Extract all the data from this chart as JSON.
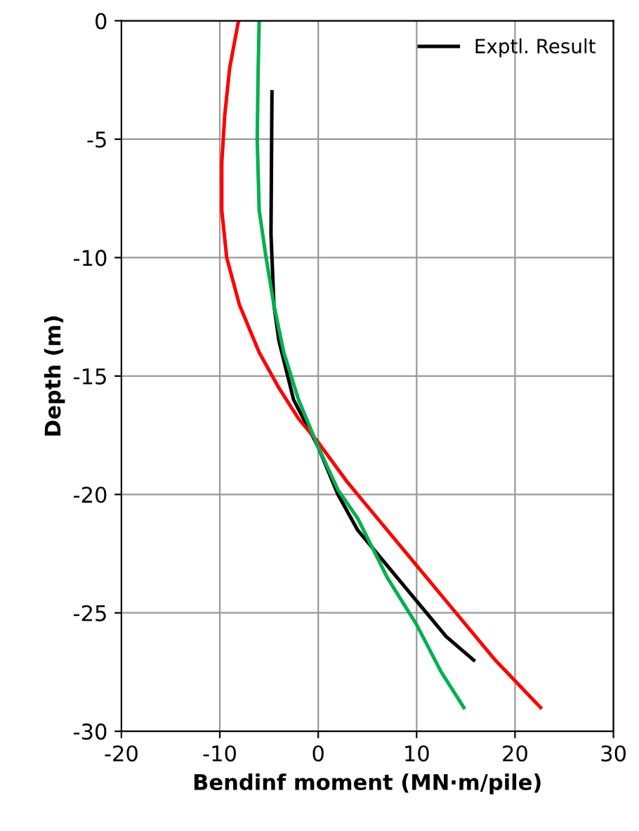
{
  "chart_data": {
    "type": "line",
    "xlabel": "Bendinf moment (MN·m/pile)",
    "ylabel": "Depth (m)",
    "xlim": [
      -20,
      30
    ],
    "xticks": [
      -20,
      -10,
      0,
      10,
      20,
      30
    ],
    "ylim": [
      -30,
      0
    ],
    "yticks": [
      -30,
      -25,
      -20,
      -15,
      -10,
      -5,
      0
    ],
    "grid": true,
    "legend": "top right",
    "marker": "none",
    "line_style": "solid",
    "series": [
      {
        "name": "Exptl. Result",
        "color": "#000000",
        "x": [
          -4.7,
          -4.8,
          -4.5,
          -4,
          -2.5,
          0,
          2,
          4,
          7,
          10,
          13,
          15.8
        ],
        "values": [
          -3,
          -9,
          -12,
          -13.5,
          -16,
          -18,
          -20,
          -21.5,
          -23,
          -24.5,
          -26,
          -27
        ]
      },
      {
        "color": "#ff0000",
        "x": [
          -8.1,
          -9,
          -9.5,
          -9.8,
          -9.8,
          -9.3,
          -8,
          -6,
          -4,
          -2,
          0,
          3,
          6,
          10,
          14,
          18,
          22.6
        ],
        "values": [
          0,
          -2,
          -4,
          -6,
          -8,
          -10,
          -12,
          -14,
          -15.5,
          -16.8,
          -17.8,
          -19.5,
          -21,
          -23,
          -25,
          -27,
          -29
        ]
      },
      {
        "color": "#00b050",
        "x": [
          -6,
          -6.1,
          -6.2,
          -6,
          -5.3,
          -4.5,
          -3.5,
          -2,
          0,
          2,
          4,
          7,
          10,
          12.5,
          14.8
        ],
        "values": [
          0,
          -2,
          -5,
          -8,
          -10,
          -12,
          -14,
          -16,
          -18,
          -19.8,
          -21,
          -23.5,
          -25.5,
          -27.5,
          -29
        ]
      }
    ]
  }
}
